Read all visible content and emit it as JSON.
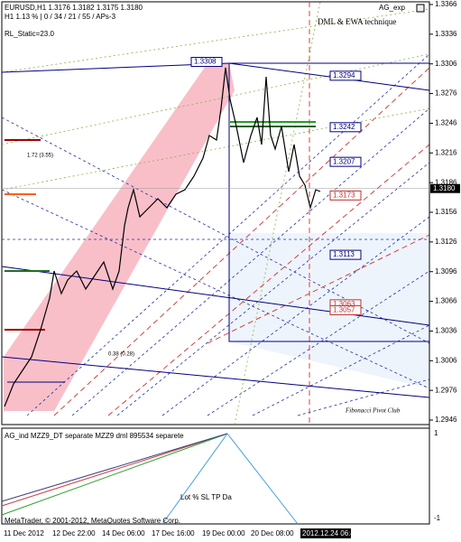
{
  "header": {
    "symbol_line": "EURUSD,H1  1.3176 1.3182 1.3175 1.3180",
    "info_line": "H1  1.13 % | 0 / 34 / 21 / 55 / APs-3",
    "static": "RL_Static=23.0",
    "indicator": "AG_exp",
    "technique": "DML & EWA  technique"
  },
  "price_axis": [
    "1.3366",
    "1.3336",
    "1.3306",
    "1.3276",
    "1.3246",
    "1.3216",
    "1.3186",
    "1.3156",
    "1.3126",
    "1.3096",
    "1.3066",
    "1.3036",
    "1.3006",
    "1.2976",
    "1.2946"
  ],
  "current_price": "1.3180",
  "level_labels": [
    "1.3308",
    "1.3294",
    "1.3242",
    "1.3207",
    "1.3173",
    "1.3113",
    "1.3063",
    "1.3057"
  ],
  "annotations": {
    "left_top": "1.72 (3.55)",
    "left_bottom": "0.38 (0.28)",
    "club": "Fibonacci Pivot Club"
  },
  "sub_window": {
    "title": "AG_ind  MZZ9_DT separate  MZZ9 dml 895534 separete",
    "axis_top": "1",
    "axis_bottom": "-1"
  },
  "footer": {
    "copyright": "MetaTrader, © 2001-2012, MetaQuotes Software Corp.",
    "panel": "Lot  %  SL  TP  Da"
  },
  "time_axis": [
    "11 Dec 2012",
    "12 Dec 22:00",
    "14 Dec 06:00",
    "17 Dec 16:00",
    "19 Dec 00:00",
    "20 Dec 08:00",
    "2012.12.24 06:48"
  ]
}
